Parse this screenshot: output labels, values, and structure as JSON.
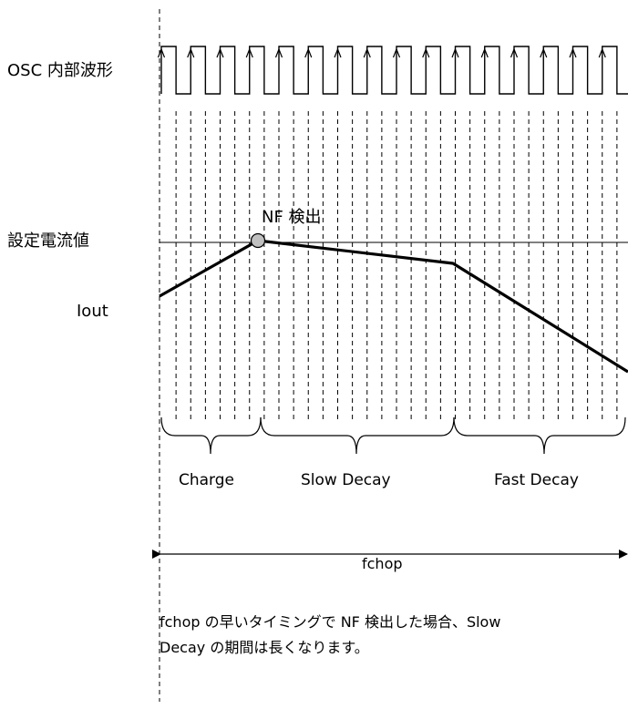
{
  "labels": {
    "osc": "OSC 内部波形",
    "set_current": "設定電流値",
    "iout": "Iout",
    "nf_detect": "NF 検出",
    "fchop": "fchop"
  },
  "phases": {
    "charge": "Charge",
    "slow_decay": "Slow Decay",
    "fast_decay": "Fast Decay"
  },
  "note": {
    "line1": "fchop の早いタイミングで NF 検出した場合、Slow",
    "line2": "Decay の期間は長くなります。"
  }
}
